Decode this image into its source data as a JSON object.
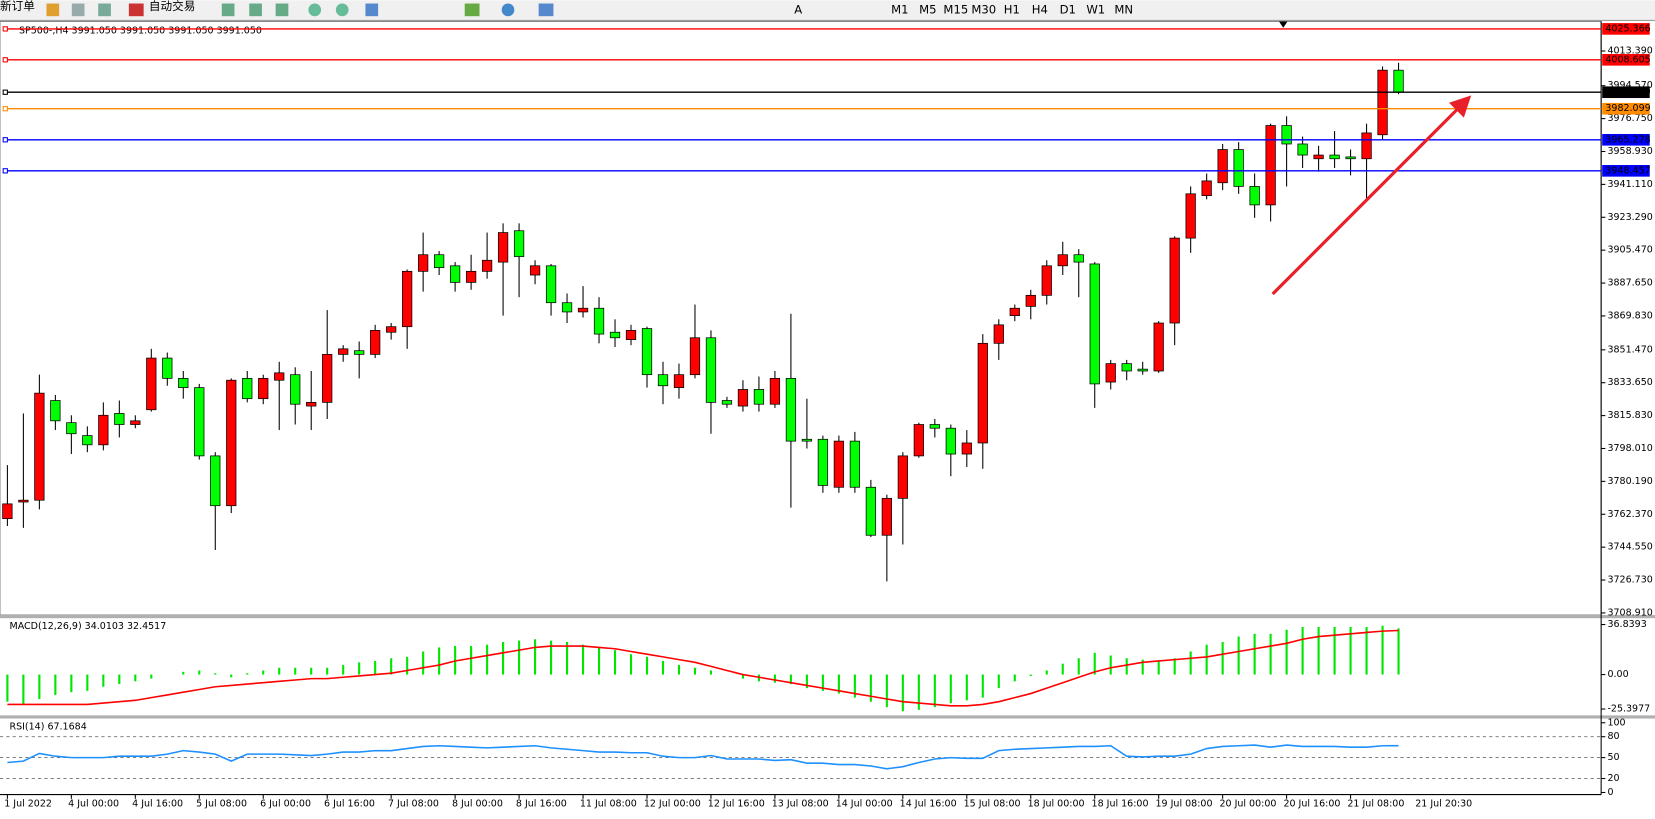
{
  "toolbar": {
    "buttons": [
      "新订单",
      "自动交易"
    ],
    "timeframes": [
      "M1",
      "M5",
      "M15",
      "M30",
      "H1",
      "H4",
      "D1",
      "W1",
      "MN"
    ]
  },
  "chart_data": [
    {
      "type": "candlestick",
      "title": "SP500-,H4  3991.050 3991.050 3991.050 3991.050",
      "categories": [
        "1 Jul 2022",
        null,
        null,
        null,
        "4 Jul 00:00",
        null,
        null,
        null,
        "4 Jul 16:00",
        null,
        null,
        null,
        "5 Jul 08:00",
        null,
        null,
        null,
        "6 Jul 00:00",
        null,
        null,
        null,
        "6 Jul 16:00",
        null,
        null,
        null,
        "7 Jul 08:00",
        null,
        null,
        null,
        "8 Jul 00:00",
        null,
        null,
        null,
        "8 Jul 16:00",
        null,
        null,
        null,
        "11 Jul 08:00",
        null,
        null,
        null,
        "12 Jul 00:00",
        null,
        null,
        null,
        "12 Jul 16:00",
        null,
        null,
        null,
        "13 Jul 08:00",
        null,
        null,
        null,
        "14 Jul 00:00",
        null,
        null,
        null,
        "14 Jul 16:00",
        null,
        null,
        null,
        "15 Jul 08:00",
        null,
        null,
        null,
        "18 Jul 00:00",
        null,
        null,
        null,
        "18 Jul 16:00",
        null,
        null,
        null,
        "19 Jul 08:00",
        null,
        null,
        null,
        "20 Jul 00:00",
        null,
        null,
        null,
        "20 Jul 16:00",
        null,
        null,
        null,
        "21 Jul 08:00",
        null,
        null,
        null
      ],
      "cursor_label": "21 Jul 20:30",
      "ohlc": [
        [
          3760,
          3789,
          3756,
          3768
        ],
        [
          3769,
          3817,
          3755,
          3770
        ],
        [
          3770,
          3838,
          3765,
          3828
        ],
        [
          3824,
          3827,
          3808,
          3813
        ],
        [
          3812,
          3816,
          3795,
          3806
        ],
        [
          3805,
          3810,
          3796,
          3800
        ],
        [
          3800,
          3823,
          3797,
          3816
        ],
        [
          3817,
          3824,
          3804,
          3811
        ],
        [
          3811,
          3816,
          3809,
          3813
        ],
        [
          3819,
          3852,
          3818,
          3847
        ],
        [
          3847,
          3850,
          3832,
          3836
        ],
        [
          3836,
          3840,
          3825,
          3831
        ],
        [
          3831,
          3833,
          3792,
          3794
        ],
        [
          3794,
          3796,
          3743,
          3767
        ],
        [
          3767,
          3836,
          3763,
          3835
        ],
        [
          3836,
          3840,
          3823,
          3825
        ],
        [
          3825,
          3838,
          3822,
          3836
        ],
        [
          3835,
          3845,
          3808,
          3839
        ],
        [
          3838,
          3842,
          3811,
          3822
        ],
        [
          3821,
          3840,
          3808,
          3823
        ],
        [
          3823,
          3873,
          3814,
          3849
        ],
        [
          3849,
          3854,
          3845,
          3852
        ],
        [
          3851,
          3856,
          3836,
          3849
        ],
        [
          3849,
          3865,
          3847,
          3862
        ],
        [
          3861,
          3866,
          3857,
          3864
        ],
        [
          3864,
          3895,
          3852,
          3894
        ],
        [
          3894,
          3915,
          3883,
          3903
        ],
        [
          3903,
          3905,
          3892,
          3896
        ],
        [
          3897,
          3899,
          3883,
          3888
        ],
        [
          3888,
          3903,
          3884,
          3894
        ],
        [
          3894,
          3915,
          3890,
          3900
        ],
        [
          3899,
          3920,
          3870,
          3915
        ],
        [
          3916,
          3920,
          3880,
          3902
        ],
        [
          3892,
          3900,
          3887,
          3897
        ],
        [
          3897,
          3898,
          3870,
          3877
        ],
        [
          3877,
          3882,
          3866,
          3872
        ],
        [
          3872,
          3886,
          3869,
          3874
        ],
        [
          3874,
          3880,
          3855,
          3860
        ],
        [
          3861,
          3868,
          3853,
          3858
        ],
        [
          3857,
          3865,
          3854,
          3862
        ],
        [
          3863,
          3864,
          3831,
          3838
        ],
        [
          3838,
          3845,
          3822,
          3832
        ],
        [
          3831,
          3844,
          3825,
          3838
        ],
        [
          3838,
          3876,
          3836,
          3858
        ],
        [
          3858,
          3862,
          3806,
          3823
        ],
        [
          3824,
          3826,
          3820,
          3822
        ],
        [
          3821,
          3835,
          3818,
          3830
        ],
        [
          3830,
          3837,
          3818,
          3822
        ],
        [
          3822,
          3840,
          3820,
          3836
        ],
        [
          3836,
          3871,
          3766,
          3802
        ],
        [
          3803,
          3825,
          3798,
          3802
        ],
        [
          3803,
          3805,
          3774,
          3778
        ],
        [
          3777,
          3805,
          3774,
          3802
        ],
        [
          3802,
          3807,
          3774,
          3777
        ],
        [
          3777,
          3781,
          3750,
          3751
        ],
        [
          3751,
          3773,
          3726,
          3771
        ],
        [
          3771,
          3796,
          3746,
          3794
        ],
        [
          3794,
          3812,
          3793,
          3811
        ],
        [
          3811,
          3814,
          3804,
          3809
        ],
        [
          3809,
          3811,
          3783,
          3795
        ],
        [
          3795,
          3808,
          3788,
          3801
        ],
        [
          3801,
          3860,
          3787,
          3855
        ],
        [
          3855,
          3868,
          3846,
          3865
        ],
        [
          3870,
          3876,
          3867,
          3874
        ],
        [
          3875,
          3884,
          3868,
          3881
        ],
        [
          3881,
          3900,
          3876,
          3897
        ],
        [
          3897,
          3910,
          3892,
          3903
        ],
        [
          3903,
          3906,
          3880,
          3899
        ],
        [
          3898,
          3899,
          3820,
          3833
        ],
        [
          3834,
          3846,
          3830,
          3844
        ],
        [
          3844,
          3846,
          3835,
          3840
        ],
        [
          3841,
          3845,
          3838,
          3840
        ],
        [
          3840,
          3867,
          3839,
          3866
        ],
        [
          3866,
          3913,
          3854,
          3912
        ],
        [
          3912,
          3940,
          3904,
          3936
        ],
        [
          3935,
          3947,
          3933,
          3943
        ],
        [
          3942,
          3963,
          3938,
          3960
        ],
        [
          3960,
          3964,
          3936,
          3940
        ],
        [
          3940,
          3947,
          3923,
          3930
        ],
        [
          3930,
          3974,
          3921,
          3973
        ],
        [
          3973,
          3978,
          3940,
          3963
        ],
        [
          3963,
          3967,
          3950,
          3957
        ],
        [
          3955,
          3962,
          3948,
          3957
        ],
        [
          3957,
          3970,
          3950,
          3955
        ],
        [
          3956,
          3960,
          3946,
          3955
        ],
        [
          3955,
          3974,
          3933,
          3969
        ],
        [
          3968,
          4005,
          3965,
          4003
        ],
        [
          4003,
          4007,
          3990,
          3991.05
        ]
      ],
      "up_color": "#ff0000",
      "down_color": "#00ff00",
      "ylim": [
        3707.77,
        4029.38
      ],
      "yticks": [
        {
          "value": 3708.91,
          "label": "3708.910"
        },
        {
          "value": 3726.73,
          "label": "3726.730"
        },
        {
          "value": 3744.55,
          "label": "3744.550"
        },
        {
          "value": 3762.37,
          "label": "3762.370"
        },
        {
          "value": 3780.19,
          "label": "3780.190"
        },
        {
          "value": 3798.01,
          "label": "3798.010"
        },
        {
          "value": 3815.83,
          "label": "3815.830"
        },
        {
          "value": 3833.65,
          "label": "3833.650"
        },
        {
          "value": 3851.47,
          "label": "3851.470"
        },
        {
          "value": 3869.83,
          "label": "3869.830"
        },
        {
          "value": 3887.65,
          "label": "3887.650"
        },
        {
          "value": 3905.47,
          "label": "3905.470"
        },
        {
          "value": 3923.29,
          "label": "3923.290"
        },
        {
          "value": 3941.11,
          "label": "3941.110"
        },
        {
          "value": 3958.93,
          "label": "3958.930"
        },
        {
          "value": 3976.75,
          "label": "3976.750"
        },
        {
          "value": 3994.57,
          "label": "3994.570"
        },
        {
          "value": 4013.39,
          "label": "4013.390"
        }
      ],
      "levels": [
        {
          "value": 4025.366,
          "color": "#ff0000"
        },
        {
          "value": 4008.605,
          "color": "#ff0000"
        },
        {
          "value": 3991.05,
          "label": "3991.050",
          "color": "#000000"
        },
        {
          "value": 3982.099,
          "color": "#ff8c00"
        },
        {
          "value": 3965.278,
          "color": "#0000ff"
        },
        {
          "value": 3948.457,
          "color": "#0000ff"
        }
      ]
    },
    {
      "type": "macd",
      "title": "MACD(12,26,9) 34.0103 32.4517",
      "ylim": [
        -29.29,
        40.73
      ],
      "yticks": [
        36.8393,
        {
          "value": 0,
          "label": "0.00"
        },
        -25.3977
      ],
      "histogram": {
        "color": "#00e600",
        "values": [
          -20,
          -22,
          -18,
          -15,
          -13,
          -12,
          -9,
          -7,
          -5,
          -3,
          0,
          2,
          3,
          1,
          -2,
          1,
          3,
          5,
          5,
          5,
          5,
          7,
          9,
          10,
          12,
          13,
          17,
          20,
          21,
          21,
          22,
          24,
          25,
          26,
          25,
          24,
          22,
          20,
          18,
          15,
          13,
          10,
          7,
          5,
          3,
          0,
          -3,
          -5,
          -6,
          -7,
          -10,
          -12,
          -14,
          -17,
          -20,
          -24,
          -27,
          -26,
          -24,
          -21,
          -19,
          -17,
          -10,
          -5,
          -1,
          3,
          8,
          12,
          16,
          14,
          12,
          11,
          10,
          12,
          17,
          22,
          24,
          28,
          30,
          30,
          33,
          35,
          35,
          35,
          35,
          35,
          36,
          34.0103
        ]
      },
      "signal": {
        "color": "#ff0000",
        "values": [
          -22,
          -22,
          -22,
          -22,
          -22,
          -22,
          -21,
          -20,
          -19,
          -17,
          -15,
          -13,
          -11,
          -9,
          -8,
          -7,
          -6,
          -5,
          -4,
          -3,
          -3,
          -2,
          -1,
          0,
          1,
          3,
          5,
          7,
          10,
          12,
          14,
          16,
          18,
          20,
          21,
          21,
          21,
          20,
          19,
          17,
          15,
          13,
          11,
          9,
          6,
          3,
          0,
          -2,
          -4,
          -6,
          -8,
          -10,
          -12,
          -14,
          -16,
          -18,
          -20,
          -21,
          -22,
          -23,
          -23,
          -22,
          -20,
          -17,
          -14,
          -10,
          -6,
          -2,
          2,
          5,
          7,
          9,
          10,
          11,
          12,
          13,
          15,
          17,
          19,
          21,
          23,
          26,
          28,
          29,
          30,
          31,
          32,
          32.4517
        ]
      }
    },
    {
      "type": "rsi",
      "title": "RSI(14) 67.1684",
      "color": "#1e90ff",
      "ylim": [
        0,
        100
      ],
      "yticks": [
        100,
        80,
        50,
        20,
        0
      ],
      "values": [
        43,
        45,
        56,
        52,
        50,
        50,
        50,
        52,
        52,
        52,
        55,
        60,
        58,
        55,
        45,
        55,
        55,
        55,
        54,
        53,
        55,
        58,
        58,
        60,
        60,
        63,
        66,
        67,
        66,
        65,
        64,
        65,
        66,
        67,
        64,
        62,
        60,
        58,
        58,
        57,
        57,
        52,
        50,
        50,
        53,
        48,
        48,
        48,
        46,
        47,
        42,
        42,
        40,
        40,
        38,
        34,
        37,
        43,
        48,
        50,
        49,
        49,
        60,
        62,
        63,
        64,
        65,
        66,
        66,
        67,
        52,
        51,
        52,
        52,
        55,
        63,
        66,
        67,
        68,
        65,
        68,
        66,
        66,
        66,
        65,
        65,
        67,
        67.1684
      ]
    }
  ]
}
